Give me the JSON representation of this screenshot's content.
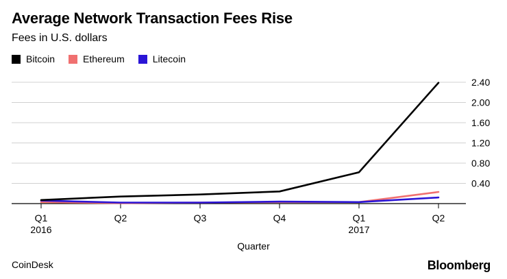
{
  "chart_data": {
    "type": "line",
    "title": "Average Network Transaction Fees Rise",
    "subtitle": "Fees in U.S. dollars",
    "xlabel": "Quarter",
    "ylabel": "",
    "categories": [
      "Q1 2016",
      "Q2",
      "Q3",
      "Q4",
      "Q1 2017",
      "Q2"
    ],
    "tick_labels": [
      [
        "Q1",
        "2016"
      ],
      [
        "Q2"
      ],
      [
        "Q3"
      ],
      [
        "Q4"
      ],
      [
        "Q1",
        "2017"
      ],
      [
        "Q2"
      ]
    ],
    "ylim": [
      0,
      2.4
    ],
    "yticks": [
      "0.40",
      "0.80",
      "1.20",
      "1.60",
      "2.00",
      "2.40"
    ],
    "ytick_values": [
      0.4,
      0.8,
      1.2,
      1.6,
      2.0,
      2.4
    ],
    "grid": true,
    "legend_position": "top-left",
    "series": [
      {
        "name": "Bitcoin",
        "color": "#000000",
        "values": [
          0.07,
          0.14,
          0.18,
          0.24,
          0.62,
          2.39
        ]
      },
      {
        "name": "Ethereum",
        "color": "#f07070",
        "values": [
          0.03,
          0.01,
          0.02,
          0.03,
          0.03,
          0.23
        ]
      },
      {
        "name": "Litecoin",
        "color": "#2a15d6",
        "values": [
          0.06,
          0.02,
          0.02,
          0.04,
          0.03,
          0.12
        ]
      }
    ]
  },
  "footer": {
    "source": "CoinDesk",
    "brand": "Bloomberg"
  }
}
